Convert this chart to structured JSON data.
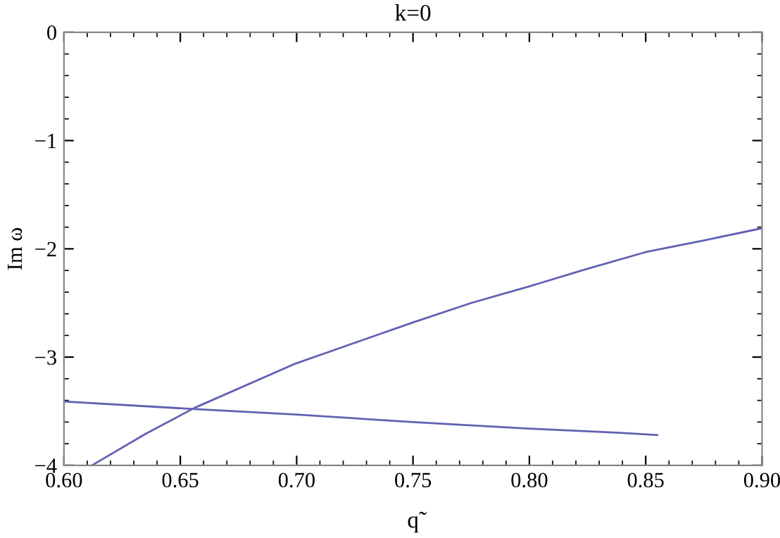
{
  "chart_data": {
    "type": "line",
    "title": "k=0",
    "xlabel": "q̃",
    "ylabel": "Im ω",
    "xlim": [
      0.6,
      0.9
    ],
    "ylim": [
      -4,
      0
    ],
    "xticks": [
      {
        "value": 0.6,
        "label": "0.60"
      },
      {
        "value": 0.65,
        "label": "0.65"
      },
      {
        "value": 0.7,
        "label": "0.70"
      },
      {
        "value": 0.75,
        "label": "0.75"
      },
      {
        "value": 0.8,
        "label": "0.80"
      },
      {
        "value": 0.85,
        "label": "0.85"
      },
      {
        "value": 0.9,
        "label": "0.90"
      }
    ],
    "yticks": [
      {
        "value": -4,
        "label": "−4"
      },
      {
        "value": -3,
        "label": "−3"
      },
      {
        "value": -2,
        "label": "−2"
      },
      {
        "value": -1,
        "label": "−1"
      },
      0
    ],
    "grid": false,
    "marker": "none",
    "line_style": "solid",
    "series": [
      {
        "color": "#6161b4",
        "x": [
          0.612,
          0.635,
          0.656,
          0.6995,
          0.722,
          0.75,
          0.775,
          0.7995,
          0.824,
          0.85,
          0.8755,
          0.9
        ],
        "values": [
          -4.0,
          -3.71,
          -3.47,
          -3.06,
          -2.89,
          -2.68,
          -2.5,
          -2.35,
          -2.19,
          -2.03,
          -1.92,
          -1.81
        ]
      },
      {
        "color": "#6161b4",
        "x": [
          0.6,
          0.656,
          0.6995,
          0.75,
          0.7995,
          0.839,
          0.855
        ],
        "values": [
          -3.41,
          -3.48,
          -3.53,
          -3.6,
          -3.66,
          -3.7,
          -3.72
        ]
      }
    ]
  }
}
